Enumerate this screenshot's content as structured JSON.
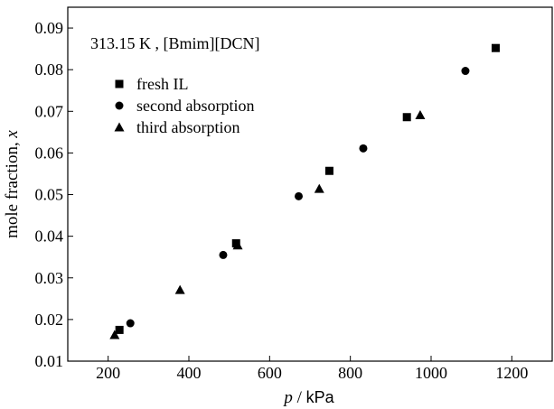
{
  "chart_data": {
    "type": "scatter",
    "annotation": "313.15 K , [Bmim][DCN]",
    "xlabel_symbol": "p",
    "xlabel_unit": "kPa",
    "ylabel": "mole fraction, ",
    "ylabel_symbol": "x",
    "xlim": [
      100,
      1300
    ],
    "ylim": [
      0.01,
      0.095
    ],
    "xticks": [
      200,
      400,
      600,
      800,
      1000,
      1200
    ],
    "yticks": [
      0.01,
      0.02,
      0.03,
      0.04,
      0.05,
      0.06,
      0.07,
      0.08,
      0.09
    ],
    "legend_position": "top-left",
    "series": [
      {
        "name": "fresh IL",
        "marker": "square",
        "points": [
          {
            "x": 228,
            "y": 0.0175
          },
          {
            "x": 517,
            "y": 0.0383
          },
          {
            "x": 748,
            "y": 0.0557
          },
          {
            "x": 940,
            "y": 0.0686
          },
          {
            "x": 1160,
            "y": 0.0852
          }
        ]
      },
      {
        "name": "second absorption",
        "marker": "circle",
        "points": [
          {
            "x": 255,
            "y": 0.0191
          },
          {
            "x": 485,
            "y": 0.0355
          },
          {
            "x": 672,
            "y": 0.0496
          },
          {
            "x": 832,
            "y": 0.0611
          },
          {
            "x": 1085,
            "y": 0.0797
          }
        ]
      },
      {
        "name": "third absorption",
        "marker": "triangle",
        "points": [
          {
            "x": 216,
            "y": 0.0163
          },
          {
            "x": 378,
            "y": 0.0271
          },
          {
            "x": 521,
            "y": 0.0378
          },
          {
            "x": 723,
            "y": 0.0514
          },
          {
            "x": 973,
            "y": 0.0691
          }
        ]
      }
    ]
  }
}
